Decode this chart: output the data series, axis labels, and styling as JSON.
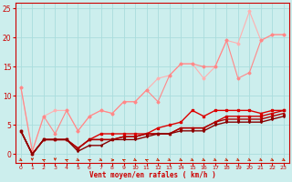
{
  "background_color": "#cceeed",
  "grid_color": "#aadddd",
  "xlabel": "Vent moyen/en rafales ( km/h )",
  "xlabel_color": "#cc0000",
  "xlim": [
    -0.5,
    23.5
  ],
  "ylim": [
    -1.5,
    26
  ],
  "xticks": [
    0,
    1,
    2,
    3,
    4,
    5,
    6,
    7,
    8,
    9,
    10,
    11,
    12,
    13,
    14,
    15,
    16,
    17,
    18,
    19,
    20,
    21,
    22,
    23
  ],
  "yticks": [
    0,
    5,
    10,
    15,
    20,
    25
  ],
  "line1": {
    "x": [
      0,
      1,
      2,
      3,
      4,
      5,
      6,
      7,
      8,
      9,
      10,
      11,
      12,
      13,
      14,
      15,
      16,
      17,
      18,
      19,
      20,
      21,
      22,
      23
    ],
    "y": [
      11.5,
      0.5,
      6.5,
      7.5,
      7.5,
      4.0,
      6.5,
      7.5,
      7.0,
      9.0,
      9.0,
      11.0,
      13.0,
      13.5,
      15.5,
      15.5,
      13.0,
      15.0,
      19.5,
      19.0,
      24.5,
      19.5,
      20.5,
      20.5
    ],
    "color": "#ffb0b0",
    "lw": 0.8,
    "marker": "D",
    "ms": 1.5
  },
  "line2": {
    "x": [
      0,
      1,
      2,
      3,
      4,
      5,
      6,
      7,
      8,
      9,
      10,
      11,
      12,
      13,
      14,
      15,
      16,
      17,
      18,
      19,
      20,
      21,
      22,
      23
    ],
    "y": [
      11.5,
      0.5,
      6.5,
      3.5,
      7.5,
      4.0,
      6.5,
      7.5,
      7.0,
      9.0,
      9.0,
      11.0,
      9.0,
      13.5,
      15.5,
      15.5,
      15.0,
      15.0,
      19.5,
      13.0,
      14.0,
      19.5,
      20.5,
      20.5
    ],
    "color": "#ff8888",
    "lw": 0.8,
    "marker": "D",
    "ms": 1.5
  },
  "line3": {
    "x": [
      0,
      1,
      2,
      3,
      4,
      5,
      6,
      7,
      8,
      9,
      10,
      11,
      12,
      13,
      14,
      15,
      16,
      17,
      18,
      19,
      20,
      21,
      22,
      23
    ],
    "y": [
      4.0,
      0.0,
      2.5,
      2.5,
      2.5,
      1.0,
      2.5,
      3.5,
      3.5,
      3.5,
      3.5,
      3.5,
      4.5,
      5.0,
      5.5,
      7.5,
      6.5,
      7.5,
      7.5,
      7.5,
      7.5,
      7.0,
      7.5,
      7.5
    ],
    "color": "#dd0000",
    "lw": 1.0,
    "marker": "s",
    "ms": 1.5
  },
  "line4": {
    "x": [
      0,
      1,
      2,
      3,
      4,
      5,
      6,
      7,
      8,
      9,
      10,
      11,
      12,
      13,
      14,
      15,
      16,
      17,
      18,
      19,
      20,
      21,
      22,
      23
    ],
    "y": [
      4.0,
      0.0,
      2.5,
      2.5,
      2.5,
      1.0,
      2.5,
      2.5,
      2.5,
      3.0,
      3.0,
      3.5,
      3.5,
      3.5,
      4.5,
      4.5,
      4.5,
      5.5,
      6.5,
      6.5,
      6.5,
      6.5,
      7.0,
      7.5
    ],
    "color": "#cc0000",
    "lw": 1.0,
    "marker": "s",
    "ms": 1.5
  },
  "line5": {
    "x": [
      0,
      1,
      2,
      3,
      4,
      5,
      6,
      7,
      8,
      9,
      10,
      11,
      12,
      13,
      14,
      15,
      16,
      17,
      18,
      19,
      20,
      21,
      22,
      23
    ],
    "y": [
      4.0,
      0.0,
      2.5,
      2.5,
      2.5,
      1.0,
      2.5,
      2.5,
      2.5,
      3.0,
      3.0,
      3.5,
      3.5,
      3.5,
      4.5,
      4.5,
      4.5,
      5.5,
      6.0,
      6.0,
      6.0,
      6.0,
      6.5,
      7.0
    ],
    "color": "#aa0000",
    "lw": 1.0,
    "marker": "^",
    "ms": 1.5
  },
  "line6": {
    "x": [
      0,
      1,
      2,
      3,
      4,
      5,
      6,
      7,
      8,
      9,
      10,
      11,
      12,
      13,
      14,
      15,
      16,
      17,
      18,
      19,
      20,
      21,
      22,
      23
    ],
    "y": [
      4.0,
      0.0,
      2.5,
      2.5,
      2.5,
      0.5,
      1.5,
      1.5,
      2.5,
      2.5,
      2.5,
      3.0,
      3.5,
      3.5,
      4.0,
      4.0,
      4.0,
      5.0,
      5.5,
      5.5,
      5.5,
      5.5,
      6.0,
      6.5
    ],
    "color": "#880000",
    "lw": 1.0,
    "marker": "v",
    "ms": 1.5
  },
  "wind_angles": [
    45,
    0,
    225,
    0,
    225,
    45,
    225,
    45,
    90,
    225,
    45,
    225,
    45,
    45,
    45,
    45,
    45,
    45,
    45,
    45,
    45,
    45,
    45,
    45
  ],
  "wind_color": "#cc2200"
}
